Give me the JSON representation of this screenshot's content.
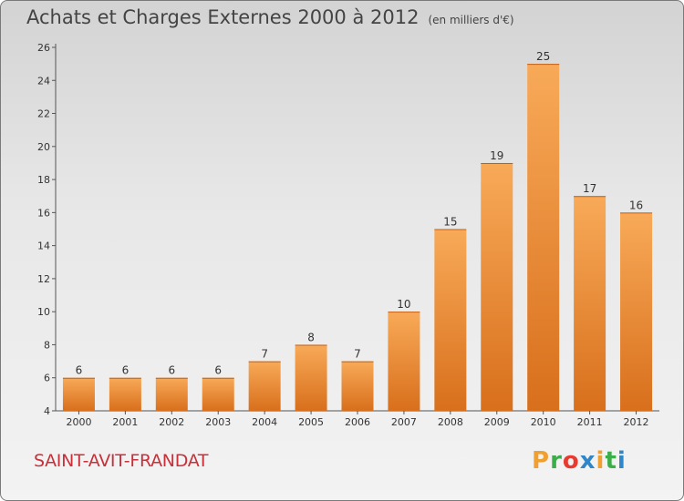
{
  "header": {
    "title": "Achats et Charges Externes 2000 à 2012",
    "subtitle": "(en milliers d'€)"
  },
  "footer": {
    "commune": "SAINT-AVIT-FRANDAT",
    "logo_letters": [
      "P",
      "r",
      "o",
      "x",
      "i",
      "t",
      "i"
    ],
    "logo_colors": [
      "#f0a030",
      "#3cae49",
      "#e63b2e",
      "#2f86c9",
      "#f0a030",
      "#3cae49",
      "#2f86c9"
    ]
  },
  "chart_data": {
    "type": "bar",
    "categories": [
      "2000",
      "2001",
      "2002",
      "2003",
      "2004",
      "2005",
      "2006",
      "2007",
      "2008",
      "2009",
      "2010",
      "2011",
      "2012"
    ],
    "values": [
      6,
      6,
      6,
      6,
      7,
      8,
      7,
      10,
      15,
      19,
      25,
      17,
      16
    ],
    "title": "Achats et Charges Externes 2000 à 2012",
    "subtitle": "(en milliers d'€)",
    "xlabel": "",
    "ylabel": "",
    "ylim": [
      4,
      26
    ],
    "yticks": [
      4,
      6,
      8,
      10,
      12,
      14,
      16,
      18,
      20,
      22,
      24,
      26
    ],
    "grid": false,
    "bar_color": "#f0902c"
  }
}
